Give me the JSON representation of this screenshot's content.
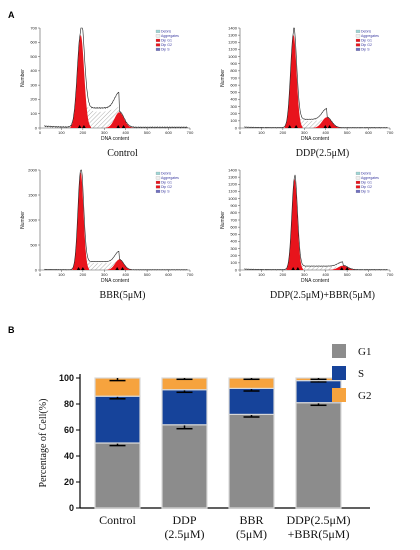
{
  "panels": {
    "a_letter": "A",
    "b_letter": "B"
  },
  "colors": {
    "g1_peak": "#e8141c",
    "g1_bar": "#8c8c8c",
    "s_bar": "#16439a",
    "g2_bar": "#f6a33e",
    "histogram_line": "#202020",
    "hatch": "#606060",
    "debris": "#9fd5d5",
    "aggregates": "#f0f0f0",
    "dip_g1": "#e8141c",
    "dip_g2": "#e8141c",
    "dip_s": "#7070c0"
  },
  "histogram_legend": [
    "Debris",
    "Aggregates",
    "Dip G1",
    "Dip G2",
    "Dip S"
  ],
  "chart_data": [
    {
      "type": "area",
      "caption": "Control",
      "xlabel": "DNA content",
      "ylabel": "Number",
      "xlim": [
        0,
        700
      ],
      "ylim": [
        0,
        700
      ],
      "xticks": [
        0,
        100,
        200,
        300,
        400,
        500,
        600,
        700
      ],
      "yticks": [
        0,
        100,
        200,
        300,
        400,
        500,
        600,
        700
      ],
      "g1": {
        "center": 190,
        "width": 16,
        "height": 650
      },
      "g2": {
        "center": 370,
        "width": 22,
        "height": 110
      },
      "s_plateau": 150,
      "markers": [
        185,
        205,
        365,
        390
      ]
    },
    {
      "type": "area",
      "caption": "DDP(2.5μM)",
      "xlabel": "DNA content",
      "ylabel": "Number",
      "xlim": [
        0,
        700
      ],
      "ylim": [
        0,
        1400
      ],
      "xticks": [
        0,
        100,
        200,
        300,
        400,
        500,
        600,
        700
      ],
      "yticks": [
        0,
        100,
        200,
        300,
        400,
        500,
        600,
        700,
        800,
        900,
        1000,
        1100,
        1200,
        1300,
        1400
      ],
      "g1": {
        "center": 250,
        "width": 14,
        "height": 1300
      },
      "g2": {
        "center": 405,
        "width": 22,
        "height": 150
      },
      "s_plateau": 130,
      "markers": [
        232,
        262,
        398,
        418
      ]
    },
    {
      "type": "area",
      "caption": "BBR(5μM)",
      "xlabel": "DNA content",
      "ylabel": "Number",
      "xlim": [
        0,
        700
      ],
      "ylim": [
        0,
        2000
      ],
      "xticks": [
        0,
        100,
        200,
        300,
        400,
        500,
        600,
        700
      ],
      "yticks": [
        0,
        500,
        1000,
        1500,
        2000
      ],
      "g1": {
        "center": 190,
        "width": 13,
        "height": 1950
      },
      "g2": {
        "center": 370,
        "width": 20,
        "height": 210
      },
      "s_plateau": 180,
      "markers": [
        180,
        200,
        360,
        385
      ]
    },
    {
      "type": "area",
      "caption": "DDP(2.5μM)+BBR(5μM)",
      "xlabel": "DNA content",
      "ylabel": "Number",
      "xlim": [
        0,
        700
      ],
      "ylim": [
        0,
        1400
      ],
      "xticks": [
        0,
        100,
        200,
        300,
        400,
        500,
        600,
        700
      ],
      "yticks": [
        0,
        100,
        200,
        300,
        400,
        500,
        600,
        700,
        800,
        900,
        1000,
        1100,
        1200,
        1300,
        1400
      ],
      "g1": {
        "center": 255,
        "width": 13,
        "height": 1270
      },
      "g2": {
        "center": 480,
        "width": 22,
        "height": 60
      },
      "s_plateau": 55,
      "markers": [
        248,
        270,
        475,
        500
      ]
    },
    {
      "type": "bar",
      "stacked": true,
      "ylabel": "Percentage of Cell(%)",
      "ylim": [
        0,
        100
      ],
      "yticks": [
        0,
        20,
        40,
        60,
        80,
        100
      ],
      "categories": [
        [
          "Control"
        ],
        [
          "DDP",
          "(2.5μM)"
        ],
        [
          "BBR",
          "(5μM)"
        ],
        [
          "DDP(2.5μM)",
          "+BBR(5μM)"
        ]
      ],
      "series": [
        {
          "name": "G1",
          "values": [
            50,
            64,
            72,
            81
          ],
          "errors": [
            2,
            3,
            2,
            2
          ]
        },
        {
          "name": "S",
          "values": [
            36,
            27,
            20,
            17
          ],
          "errors": [
            2,
            2,
            2,
            1
          ]
        },
        {
          "name": "G2",
          "values": [
            14,
            9,
            8,
            2
          ],
          "errors": [
            2,
            1,
            1,
            1
          ]
        }
      ],
      "legend_position": "top-right"
    }
  ]
}
